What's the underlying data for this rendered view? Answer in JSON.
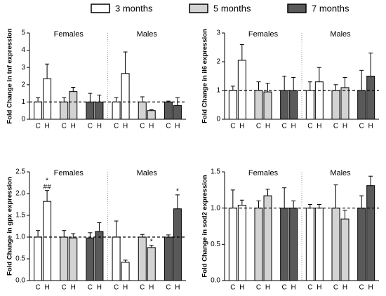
{
  "legend": [
    {
      "name": "3 months",
      "color": "#ffffff"
    },
    {
      "name": "5 months",
      "color": "#d3d3d3"
    },
    {
      "name": "7 months",
      "color": "#595959"
    }
  ],
  "chart_data": [
    {
      "type": "bar",
      "ylabel": "Fold Change in tnf expression",
      "groups": [
        "Females",
        "Males"
      ],
      "categories": [
        "C",
        "H",
        "C",
        "H",
        "C",
        "H",
        "C",
        "H",
        "C",
        "H",
        "C",
        "H"
      ],
      "values": [
        1.0,
        2.35,
        1.0,
        1.6,
        1.0,
        1.0,
        1.0,
        2.65,
        1.0,
        0.5,
        1.0,
        0.8
      ],
      "errors": [
        0.25,
        0.85,
        0.25,
        0.25,
        0.5,
        0.4,
        0.25,
        1.25,
        0.3,
        0.05,
        0.05,
        0.45
      ],
      "reference_line": 1,
      "ylim": [
        0,
        5
      ],
      "yticks": [
        0,
        1,
        2,
        3,
        4,
        5
      ],
      "annotations": []
    },
    {
      "type": "bar",
      "ylabel": "Fold Change in il6 expression",
      "groups": [
        "Females",
        "Males"
      ],
      "categories": [
        "C",
        "H",
        "C",
        "H",
        "C",
        "H",
        "C",
        "H",
        "C",
        "H",
        "C",
        "H"
      ],
      "values": [
        1.0,
        2.05,
        1.0,
        0.95,
        1.0,
        1.0,
        1.0,
        1.3,
        1.0,
        1.1,
        1.0,
        1.5
      ],
      "errors": [
        0.15,
        0.55,
        0.3,
        0.3,
        0.5,
        0.45,
        0.3,
        0.5,
        0.2,
        0.35,
        0.7,
        0.8
      ],
      "reference_line": 1,
      "ylim": [
        0,
        3
      ],
      "yticks": [
        0,
        1,
        2,
        3
      ],
      "annotations": []
    },
    {
      "type": "bar",
      "ylabel": "Fold Change in gpx expression",
      "groups": [
        "Females",
        "Males"
      ],
      "categories": [
        "C",
        "H",
        "C",
        "H",
        "C",
        "H",
        "C",
        "H",
        "C",
        "H",
        "C",
        "H"
      ],
      "values": [
        1.0,
        1.82,
        1.0,
        0.98,
        0.98,
        1.13,
        1.0,
        0.42,
        1.0,
        0.76,
        1.0,
        1.65
      ],
      "errors": [
        0.15,
        0.25,
        0.15,
        0.1,
        0.12,
        0.2,
        0.37,
        0.05,
        0.06,
        0.05,
        0.05,
        0.32
      ],
      "reference_line": 1,
      "ylim": [
        0,
        2.5
      ],
      "yticks": [
        {
          "value": 0,
          "label": "0.0"
        },
        0.5,
        {
          "value": 1,
          "label": "1.0"
        },
        1.5,
        {
          "value": 2,
          "label": "2.0"
        },
        2.5
      ],
      "annotations": [
        {
          "bar": 1,
          "text": "*"
        },
        {
          "bar": 1,
          "text": "##"
        },
        {
          "bar": 9,
          "text": "*"
        },
        {
          "bar": 11,
          "text": "*"
        }
      ]
    },
    {
      "type": "bar",
      "ylabel": "Fold Change in sod2 expression",
      "groups": [
        "Females",
        "Males"
      ],
      "categories": [
        "C",
        "H",
        "C",
        "H",
        "C",
        "H",
        "C",
        "H",
        "C",
        "H",
        "C",
        "H"
      ],
      "values": [
        1.0,
        1.04,
        1.0,
        1.17,
        1.0,
        1.0,
        1.0,
        1.0,
        1.0,
        0.85,
        1.0,
        1.31
      ],
      "errors": [
        0.25,
        0.07,
        0.1,
        0.09,
        0.28,
        0.1,
        0.05,
        0.05,
        0.32,
        0.12,
        0.17,
        0.13
      ],
      "reference_line": 1,
      "ylim": [
        0,
        1.5
      ],
      "yticks": [
        {
          "value": 0,
          "label": "0.0"
        },
        0.5,
        {
          "value": 1,
          "label": "1.0"
        },
        1.5
      ],
      "annotations": []
    }
  ]
}
